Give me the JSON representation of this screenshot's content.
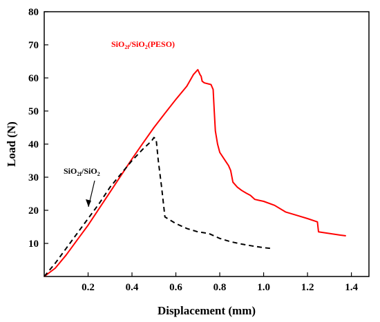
{
  "chart_data": {
    "type": "line",
    "xlabel": "Displacement (mm)",
    "ylabel": "Load (N)",
    "xlim": [
      0.0,
      1.48
    ],
    "ylim": [
      0,
      80
    ],
    "x_ticks": [
      0.2,
      0.4,
      0.6,
      0.8,
      1.0,
      1.2,
      1.4
    ],
    "y_ticks": [
      10,
      20,
      30,
      40,
      50,
      60,
      70,
      80
    ],
    "grid": false,
    "series": [
      {
        "name": "SiO2f/SiO2(PESO)",
        "label_parts": {
          "base1": "SiO",
          "sub1": "2f",
          "mid": "/SiO",
          "sub2": "2",
          "tail": "(PESO)"
        },
        "color": "#ff0000",
        "style": "solid",
        "points": [
          [
            0.0,
            0.0
          ],
          [
            0.05,
            2.5
          ],
          [
            0.1,
            6.5
          ],
          [
            0.15,
            11.0
          ],
          [
            0.2,
            15.5
          ],
          [
            0.25,
            20.5
          ],
          [
            0.3,
            25.5
          ],
          [
            0.35,
            30.5
          ],
          [
            0.4,
            35.5
          ],
          [
            0.45,
            40.3
          ],
          [
            0.5,
            45.0
          ],
          [
            0.55,
            49.3
          ],
          [
            0.6,
            53.5
          ],
          [
            0.65,
            57.5
          ],
          [
            0.68,
            61.0
          ],
          [
            0.7,
            62.5
          ],
          [
            0.71,
            61.0
          ],
          [
            0.715,
            60.5
          ],
          [
            0.72,
            59.0
          ],
          [
            0.73,
            58.5
          ],
          [
            0.76,
            58.0
          ],
          [
            0.77,
            56.5
          ],
          [
            0.775,
            50.0
          ],
          [
            0.78,
            44.0
          ],
          [
            0.79,
            40.0
          ],
          [
            0.8,
            37.5
          ],
          [
            0.82,
            35.5
          ],
          [
            0.84,
            33.5
          ],
          [
            0.85,
            32.0
          ],
          [
            0.86,
            28.5
          ],
          [
            0.88,
            27.0
          ],
          [
            0.9,
            26.0
          ],
          [
            0.92,
            25.2
          ],
          [
            0.94,
            24.5
          ],
          [
            0.96,
            23.3
          ],
          [
            0.98,
            23.0
          ],
          [
            1.0,
            22.7
          ],
          [
            1.05,
            21.5
          ],
          [
            1.1,
            19.5
          ],
          [
            1.15,
            18.5
          ],
          [
            1.2,
            17.5
          ],
          [
            1.245,
            16.5
          ],
          [
            1.25,
            13.5
          ],
          [
            1.3,
            13.0
          ],
          [
            1.35,
            12.5
          ],
          [
            1.375,
            12.3
          ]
        ]
      },
      {
        "name": "SiO2f/SiO2",
        "label_parts": {
          "base1": "SiO",
          "sub1": "2f",
          "mid": "/SiO",
          "sub2": "2",
          "tail": ""
        },
        "color": "#000000",
        "style": "dashed",
        "points": [
          [
            0.0,
            0.0
          ],
          [
            0.05,
            4.0
          ],
          [
            0.1,
            8.5
          ],
          [
            0.15,
            13.0
          ],
          [
            0.2,
            17.5
          ],
          [
            0.25,
            22.0
          ],
          [
            0.3,
            27.0
          ],
          [
            0.35,
            31.0
          ],
          [
            0.4,
            35.0
          ],
          [
            0.45,
            38.5
          ],
          [
            0.49,
            41.0
          ],
          [
            0.5,
            42.0
          ],
          [
            0.51,
            41.5
          ],
          [
            0.52,
            35.0
          ],
          [
            0.535,
            27.0
          ],
          [
            0.55,
            18.0
          ],
          [
            0.6,
            16.0
          ],
          [
            0.65,
            14.5
          ],
          [
            0.7,
            13.5
          ],
          [
            0.75,
            13.0
          ],
          [
            0.8,
            11.5
          ],
          [
            0.85,
            10.5
          ],
          [
            0.9,
            9.8
          ],
          [
            0.95,
            9.2
          ],
          [
            1.0,
            8.7
          ],
          [
            1.03,
            8.5
          ]
        ]
      }
    ]
  }
}
